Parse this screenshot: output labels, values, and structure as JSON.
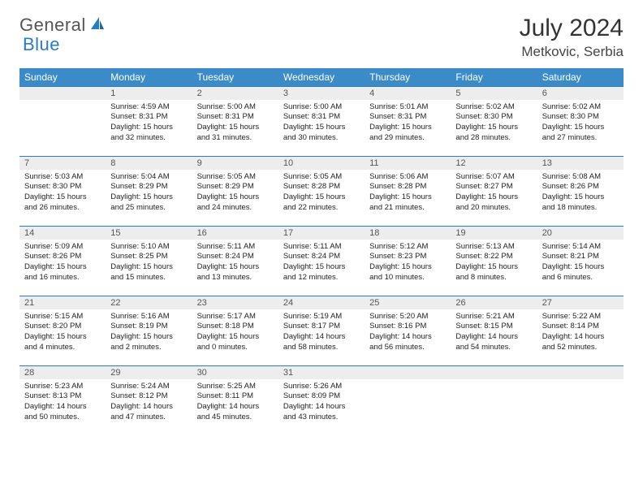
{
  "logo": {
    "word1": "General",
    "word2": "Blue"
  },
  "title": "July 2024",
  "location": "Metkovic, Serbia",
  "colors": {
    "header_bg": "#3b8bc9",
    "header_text": "#ffffff",
    "daynum_bg": "#ededed",
    "daynum_border": "#2b7bbf",
    "logo_gray": "#555555",
    "logo_blue": "#2b7bbf"
  },
  "day_headers": [
    "Sunday",
    "Monday",
    "Tuesday",
    "Wednesday",
    "Thursday",
    "Friday",
    "Saturday"
  ],
  "weeks": [
    {
      "nums": [
        "",
        "1",
        "2",
        "3",
        "4",
        "5",
        "6"
      ],
      "cells": [
        null,
        {
          "sunrise": "Sunrise: 4:59 AM",
          "sunset": "Sunset: 8:31 PM",
          "daylight": "Daylight: 15 hours and 32 minutes."
        },
        {
          "sunrise": "Sunrise: 5:00 AM",
          "sunset": "Sunset: 8:31 PM",
          "daylight": "Daylight: 15 hours and 31 minutes."
        },
        {
          "sunrise": "Sunrise: 5:00 AM",
          "sunset": "Sunset: 8:31 PM",
          "daylight": "Daylight: 15 hours and 30 minutes."
        },
        {
          "sunrise": "Sunrise: 5:01 AM",
          "sunset": "Sunset: 8:31 PM",
          "daylight": "Daylight: 15 hours and 29 minutes."
        },
        {
          "sunrise": "Sunrise: 5:02 AM",
          "sunset": "Sunset: 8:30 PM",
          "daylight": "Daylight: 15 hours and 28 minutes."
        },
        {
          "sunrise": "Sunrise: 5:02 AM",
          "sunset": "Sunset: 8:30 PM",
          "daylight": "Daylight: 15 hours and 27 minutes."
        }
      ]
    },
    {
      "nums": [
        "7",
        "8",
        "9",
        "10",
        "11",
        "12",
        "13"
      ],
      "cells": [
        {
          "sunrise": "Sunrise: 5:03 AM",
          "sunset": "Sunset: 8:30 PM",
          "daylight": "Daylight: 15 hours and 26 minutes."
        },
        {
          "sunrise": "Sunrise: 5:04 AM",
          "sunset": "Sunset: 8:29 PM",
          "daylight": "Daylight: 15 hours and 25 minutes."
        },
        {
          "sunrise": "Sunrise: 5:05 AM",
          "sunset": "Sunset: 8:29 PM",
          "daylight": "Daylight: 15 hours and 24 minutes."
        },
        {
          "sunrise": "Sunrise: 5:05 AM",
          "sunset": "Sunset: 8:28 PM",
          "daylight": "Daylight: 15 hours and 22 minutes."
        },
        {
          "sunrise": "Sunrise: 5:06 AM",
          "sunset": "Sunset: 8:28 PM",
          "daylight": "Daylight: 15 hours and 21 minutes."
        },
        {
          "sunrise": "Sunrise: 5:07 AM",
          "sunset": "Sunset: 8:27 PM",
          "daylight": "Daylight: 15 hours and 20 minutes."
        },
        {
          "sunrise": "Sunrise: 5:08 AM",
          "sunset": "Sunset: 8:26 PM",
          "daylight": "Daylight: 15 hours and 18 minutes."
        }
      ]
    },
    {
      "nums": [
        "14",
        "15",
        "16",
        "17",
        "18",
        "19",
        "20"
      ],
      "cells": [
        {
          "sunrise": "Sunrise: 5:09 AM",
          "sunset": "Sunset: 8:26 PM",
          "daylight": "Daylight: 15 hours and 16 minutes."
        },
        {
          "sunrise": "Sunrise: 5:10 AM",
          "sunset": "Sunset: 8:25 PM",
          "daylight": "Daylight: 15 hours and 15 minutes."
        },
        {
          "sunrise": "Sunrise: 5:11 AM",
          "sunset": "Sunset: 8:24 PM",
          "daylight": "Daylight: 15 hours and 13 minutes."
        },
        {
          "sunrise": "Sunrise: 5:11 AM",
          "sunset": "Sunset: 8:24 PM",
          "daylight": "Daylight: 15 hours and 12 minutes."
        },
        {
          "sunrise": "Sunrise: 5:12 AM",
          "sunset": "Sunset: 8:23 PM",
          "daylight": "Daylight: 15 hours and 10 minutes."
        },
        {
          "sunrise": "Sunrise: 5:13 AM",
          "sunset": "Sunset: 8:22 PM",
          "daylight": "Daylight: 15 hours and 8 minutes."
        },
        {
          "sunrise": "Sunrise: 5:14 AM",
          "sunset": "Sunset: 8:21 PM",
          "daylight": "Daylight: 15 hours and 6 minutes."
        }
      ]
    },
    {
      "nums": [
        "21",
        "22",
        "23",
        "24",
        "25",
        "26",
        "27"
      ],
      "cells": [
        {
          "sunrise": "Sunrise: 5:15 AM",
          "sunset": "Sunset: 8:20 PM",
          "daylight": "Daylight: 15 hours and 4 minutes."
        },
        {
          "sunrise": "Sunrise: 5:16 AM",
          "sunset": "Sunset: 8:19 PM",
          "daylight": "Daylight: 15 hours and 2 minutes."
        },
        {
          "sunrise": "Sunrise: 5:17 AM",
          "sunset": "Sunset: 8:18 PM",
          "daylight": "Daylight: 15 hours and 0 minutes."
        },
        {
          "sunrise": "Sunrise: 5:19 AM",
          "sunset": "Sunset: 8:17 PM",
          "daylight": "Daylight: 14 hours and 58 minutes."
        },
        {
          "sunrise": "Sunrise: 5:20 AM",
          "sunset": "Sunset: 8:16 PM",
          "daylight": "Daylight: 14 hours and 56 minutes."
        },
        {
          "sunrise": "Sunrise: 5:21 AM",
          "sunset": "Sunset: 8:15 PM",
          "daylight": "Daylight: 14 hours and 54 minutes."
        },
        {
          "sunrise": "Sunrise: 5:22 AM",
          "sunset": "Sunset: 8:14 PM",
          "daylight": "Daylight: 14 hours and 52 minutes."
        }
      ]
    },
    {
      "nums": [
        "28",
        "29",
        "30",
        "31",
        "",
        "",
        ""
      ],
      "cells": [
        {
          "sunrise": "Sunrise: 5:23 AM",
          "sunset": "Sunset: 8:13 PM",
          "daylight": "Daylight: 14 hours and 50 minutes."
        },
        {
          "sunrise": "Sunrise: 5:24 AM",
          "sunset": "Sunset: 8:12 PM",
          "daylight": "Daylight: 14 hours and 47 minutes."
        },
        {
          "sunrise": "Sunrise: 5:25 AM",
          "sunset": "Sunset: 8:11 PM",
          "daylight": "Daylight: 14 hours and 45 minutes."
        },
        {
          "sunrise": "Sunrise: 5:26 AM",
          "sunset": "Sunset: 8:09 PM",
          "daylight": "Daylight: 14 hours and 43 minutes."
        },
        null,
        null,
        null
      ]
    }
  ]
}
